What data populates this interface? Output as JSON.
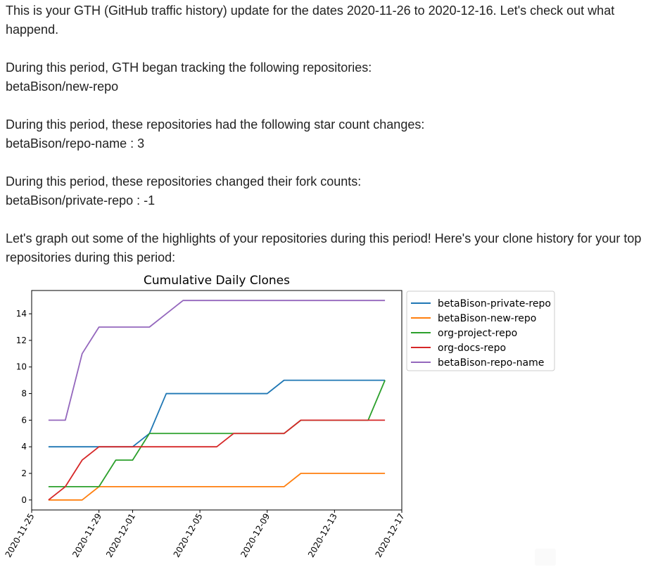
{
  "intro_text": "This is your GTH (GitHub traffic history) update for the dates 2020-11-26 to 2020-12-16. Let's check out what happend.",
  "tracking": {
    "heading": "During this period, GTH began tracking the following repositories:",
    "items": [
      "betaBison/new-repo"
    ]
  },
  "stars": {
    "heading": "During this period, these repositories had the following star count changes:",
    "items": [
      "betaBison/repo-name : 3"
    ]
  },
  "forks": {
    "heading": "During this period, these repositories changed their fork counts:",
    "items": [
      "betaBison/private-repo : -1"
    ]
  },
  "graph_intro": "Let's graph out some of the highlights of your repositories during this period! Here's your clone history for your top repositories during this period:",
  "chart_data": {
    "type": "line",
    "title": "Cumulative Daily Clones",
    "xlabel": "",
    "ylabel": "",
    "x": [
      "2020-11-26",
      "2020-11-27",
      "2020-11-28",
      "2020-11-29",
      "2020-11-30",
      "2020-12-01",
      "2020-12-02",
      "2020-12-03",
      "2020-12-04",
      "2020-12-05",
      "2020-12-06",
      "2020-12-07",
      "2020-12-08",
      "2020-12-09",
      "2020-12-10",
      "2020-12-11",
      "2020-12-12",
      "2020-12-13",
      "2020-12-14",
      "2020-12-15",
      "2020-12-16"
    ],
    "x_ticks": [
      "2020-11-25",
      "2020-11-29",
      "2020-12-01",
      "2020-12-05",
      "2020-12-09",
      "2020-12-13",
      "2020-12-17"
    ],
    "xlim": [
      "2020-11-25",
      "2020-12-17"
    ],
    "y_ticks": [
      0,
      2,
      4,
      6,
      8,
      10,
      12,
      14
    ],
    "ylim": [
      -0.75,
      15.75
    ],
    "grid": false,
    "legend_position": "outside right, top",
    "series": [
      {
        "name": "betaBison-private-repo",
        "color": "#1f77b4",
        "values": [
          4,
          4,
          4,
          4,
          4,
          4,
          5,
          8,
          8,
          8,
          8,
          8,
          8,
          8,
          9,
          9,
          9,
          9,
          9,
          9,
          9
        ]
      },
      {
        "name": "betaBison-new-repo",
        "color": "#ff7f0e",
        "values": [
          0,
          0,
          0,
          1,
          1,
          1,
          1,
          1,
          1,
          1,
          1,
          1,
          1,
          1,
          1,
          2,
          2,
          2,
          2,
          2,
          2
        ]
      },
      {
        "name": "org-project-repo",
        "color": "#2ca02c",
        "values": [
          1,
          1,
          1,
          1,
          3,
          3,
          5,
          5,
          5,
          5,
          5,
          5,
          5,
          5,
          5,
          6,
          6,
          6,
          6,
          6,
          9
        ]
      },
      {
        "name": "org-docs-repo",
        "color": "#d62728",
        "values": [
          0,
          1,
          3,
          4,
          4,
          4,
          4,
          4,
          4,
          4,
          4,
          5,
          5,
          5,
          5,
          6,
          6,
          6,
          6,
          6,
          6
        ]
      },
      {
        "name": "betaBison-repo-name",
        "color": "#9467bd",
        "values": [
          6,
          6,
          11,
          13,
          13,
          13,
          13,
          14,
          15,
          15,
          15,
          15,
          15,
          15,
          15,
          15,
          15,
          15,
          15,
          15,
          15
        ]
      }
    ]
  }
}
